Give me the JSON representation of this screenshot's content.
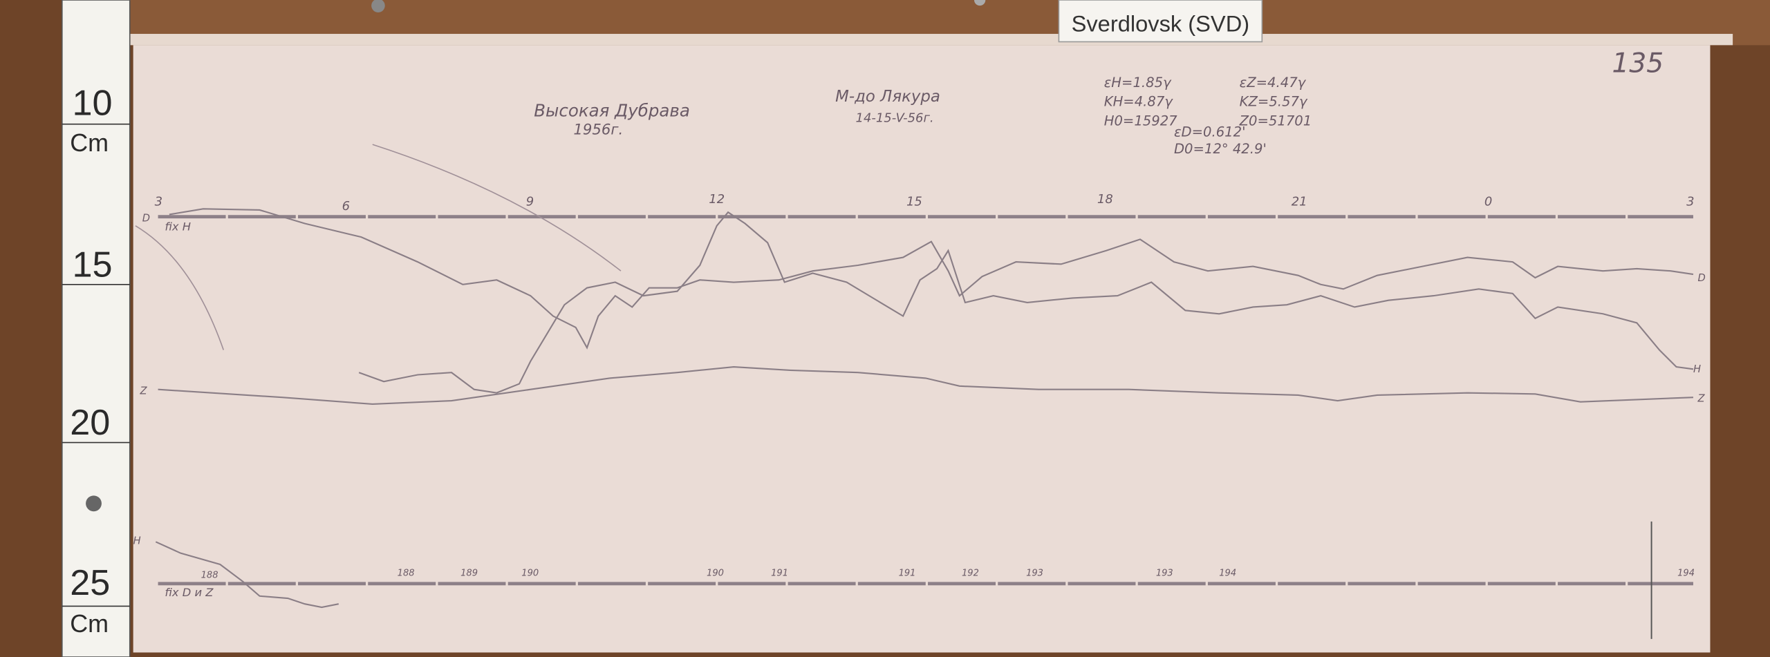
{
  "station_tag": "Sverdlovsk (SVD)",
  "sheet_number": "135",
  "title": "Высокая Дубрава",
  "year": "1956г.",
  "observer": "М-до Лякура",
  "date": "14-15-V-56г.",
  "constants": {
    "eps_h": "εH=1.85γ",
    "eps_z": "εZ=4.47γ",
    "k_h": "KH=4.87γ",
    "k_z": "KZ=5.57γ",
    "h0": "H0=15927",
    "z0": "Z0=51701",
    "eps_d": "εD=0.612'",
    "d0": "D0=12° 42.9'"
  },
  "hours": [
    "3",
    "6",
    "9",
    "12",
    "15",
    "18",
    "21",
    "0",
    "3"
  ],
  "trace_labels": {
    "d_left": "D",
    "h_fix": "fix H",
    "d_right": "D",
    "h_right": "H",
    "z_left": "Z",
    "z_right": "Z",
    "h_bottom": "H",
    "fix_dz": "fix D и Z"
  },
  "temperatures": [
    "188",
    "188",
    "189",
    "190",
    "190",
    "191",
    "191",
    "192",
    "193",
    "193",
    "194",
    "194"
  ],
  "ruler": {
    "marks": [
      "10",
      "15",
      "20",
      "25"
    ],
    "unit_top": "Cm",
    "unit_bottom": "Cm"
  },
  "colors": {
    "paper": "#eadcd6",
    "wood": "#6e4428",
    "ink": "#6a5a66"
  }
}
